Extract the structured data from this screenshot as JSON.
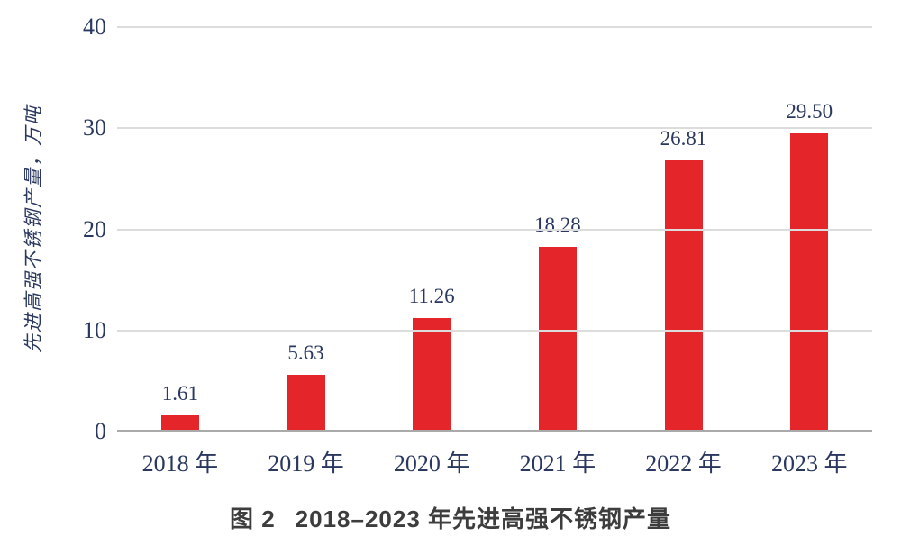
{
  "figure": {
    "caption_label": "图 2",
    "caption_title": "2018–2023 年先进高强不锈钢产量"
  },
  "chart_data": {
    "type": "bar",
    "title": "图 2 2018–2023 年先进高强不锈钢产量",
    "xlabel": "",
    "ylabel": "先进高强不锈钢产量，万吨",
    "categories": [
      "2018 年",
      "2019 年",
      "2020 年",
      "2021 年",
      "2022 年",
      "2023 年"
    ],
    "values": [
      1.61,
      5.63,
      11.26,
      18.28,
      26.81,
      29.5
    ],
    "value_labels": [
      "1.61",
      "5.63",
      "11.26",
      "18.28",
      "26.81",
      "29.50"
    ],
    "ylim": [
      0,
      40
    ],
    "yticks": [
      0,
      10,
      20,
      30,
      40
    ],
    "grid": true,
    "legend": "none",
    "colors": {
      "bar": "#e4252a",
      "text": "#2a3860",
      "gridline": "#dcdcdc",
      "axis": "#aaaaaa",
      "caption": "#3d3d3d"
    }
  }
}
